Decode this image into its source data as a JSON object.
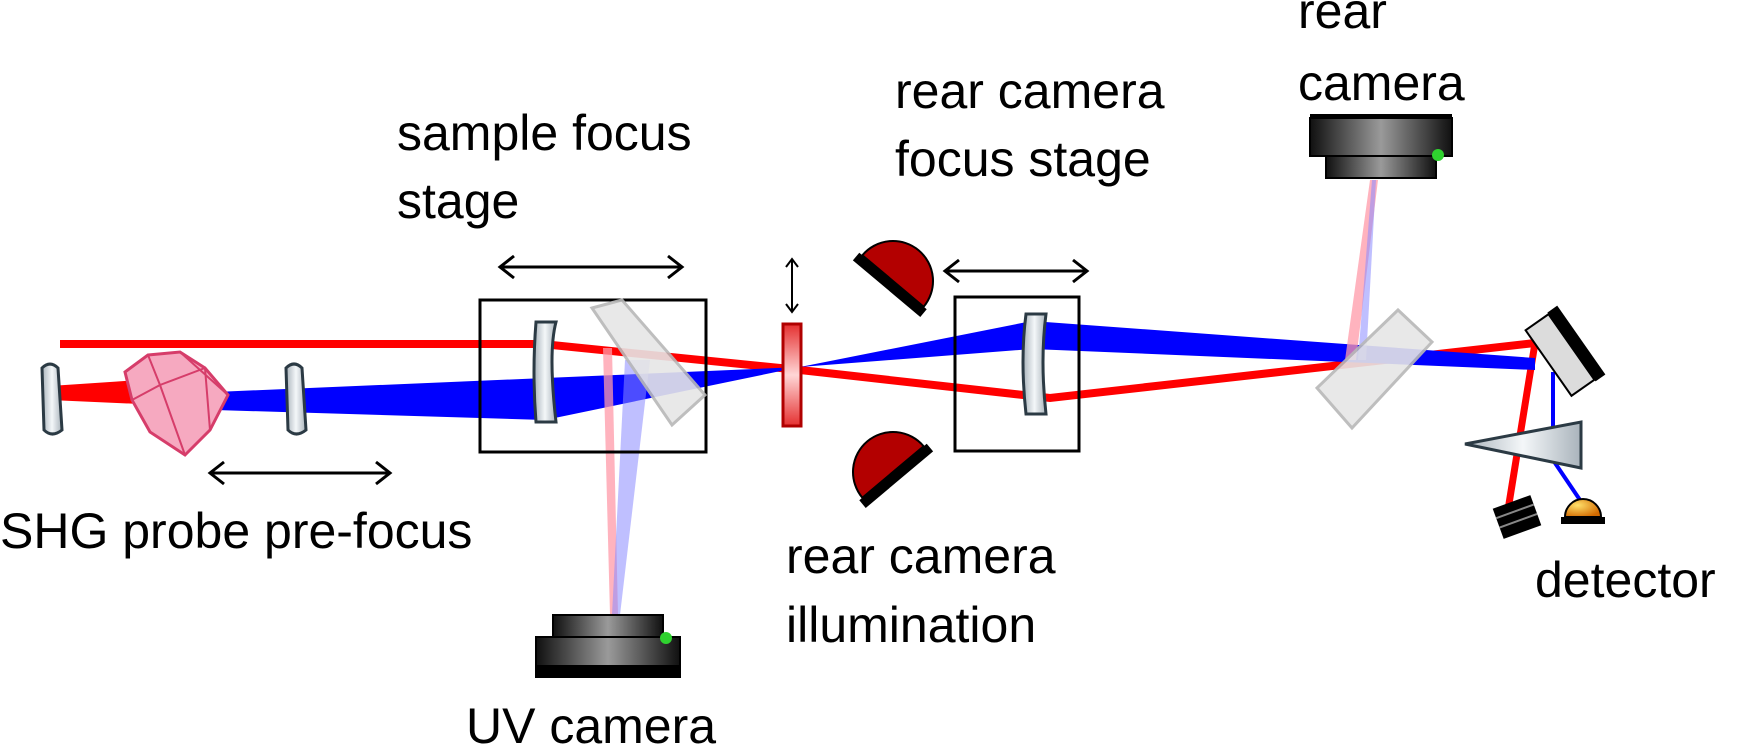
{
  "labels": {
    "shg_probe_prefocus": "SHG probe pre-focus",
    "sample_focus_stage_line1": "sample focus",
    "sample_focus_stage_line2": "stage",
    "uv_camera": "UV camera",
    "rear_camera_focus_stage_line1": "rear camera",
    "rear_camera_focus_stage_line2": "focus stage",
    "rear_camera_illumination_line1": "rear camera",
    "rear_camera_illumination_line2": "illumination",
    "rear_camera_line1": "rear",
    "rear_camera_line2": "camera",
    "detector": "detector"
  },
  "colors": {
    "red_beam": "#ff0000",
    "blue_beam": "#0000ff",
    "crystal": "#f27a9e",
    "illumination_dome": "#b30000",
    "lens_fill": "#dfe5ea",
    "splitter_fill": "#e3e3e3",
    "detector_dome": "#f2a900"
  }
}
